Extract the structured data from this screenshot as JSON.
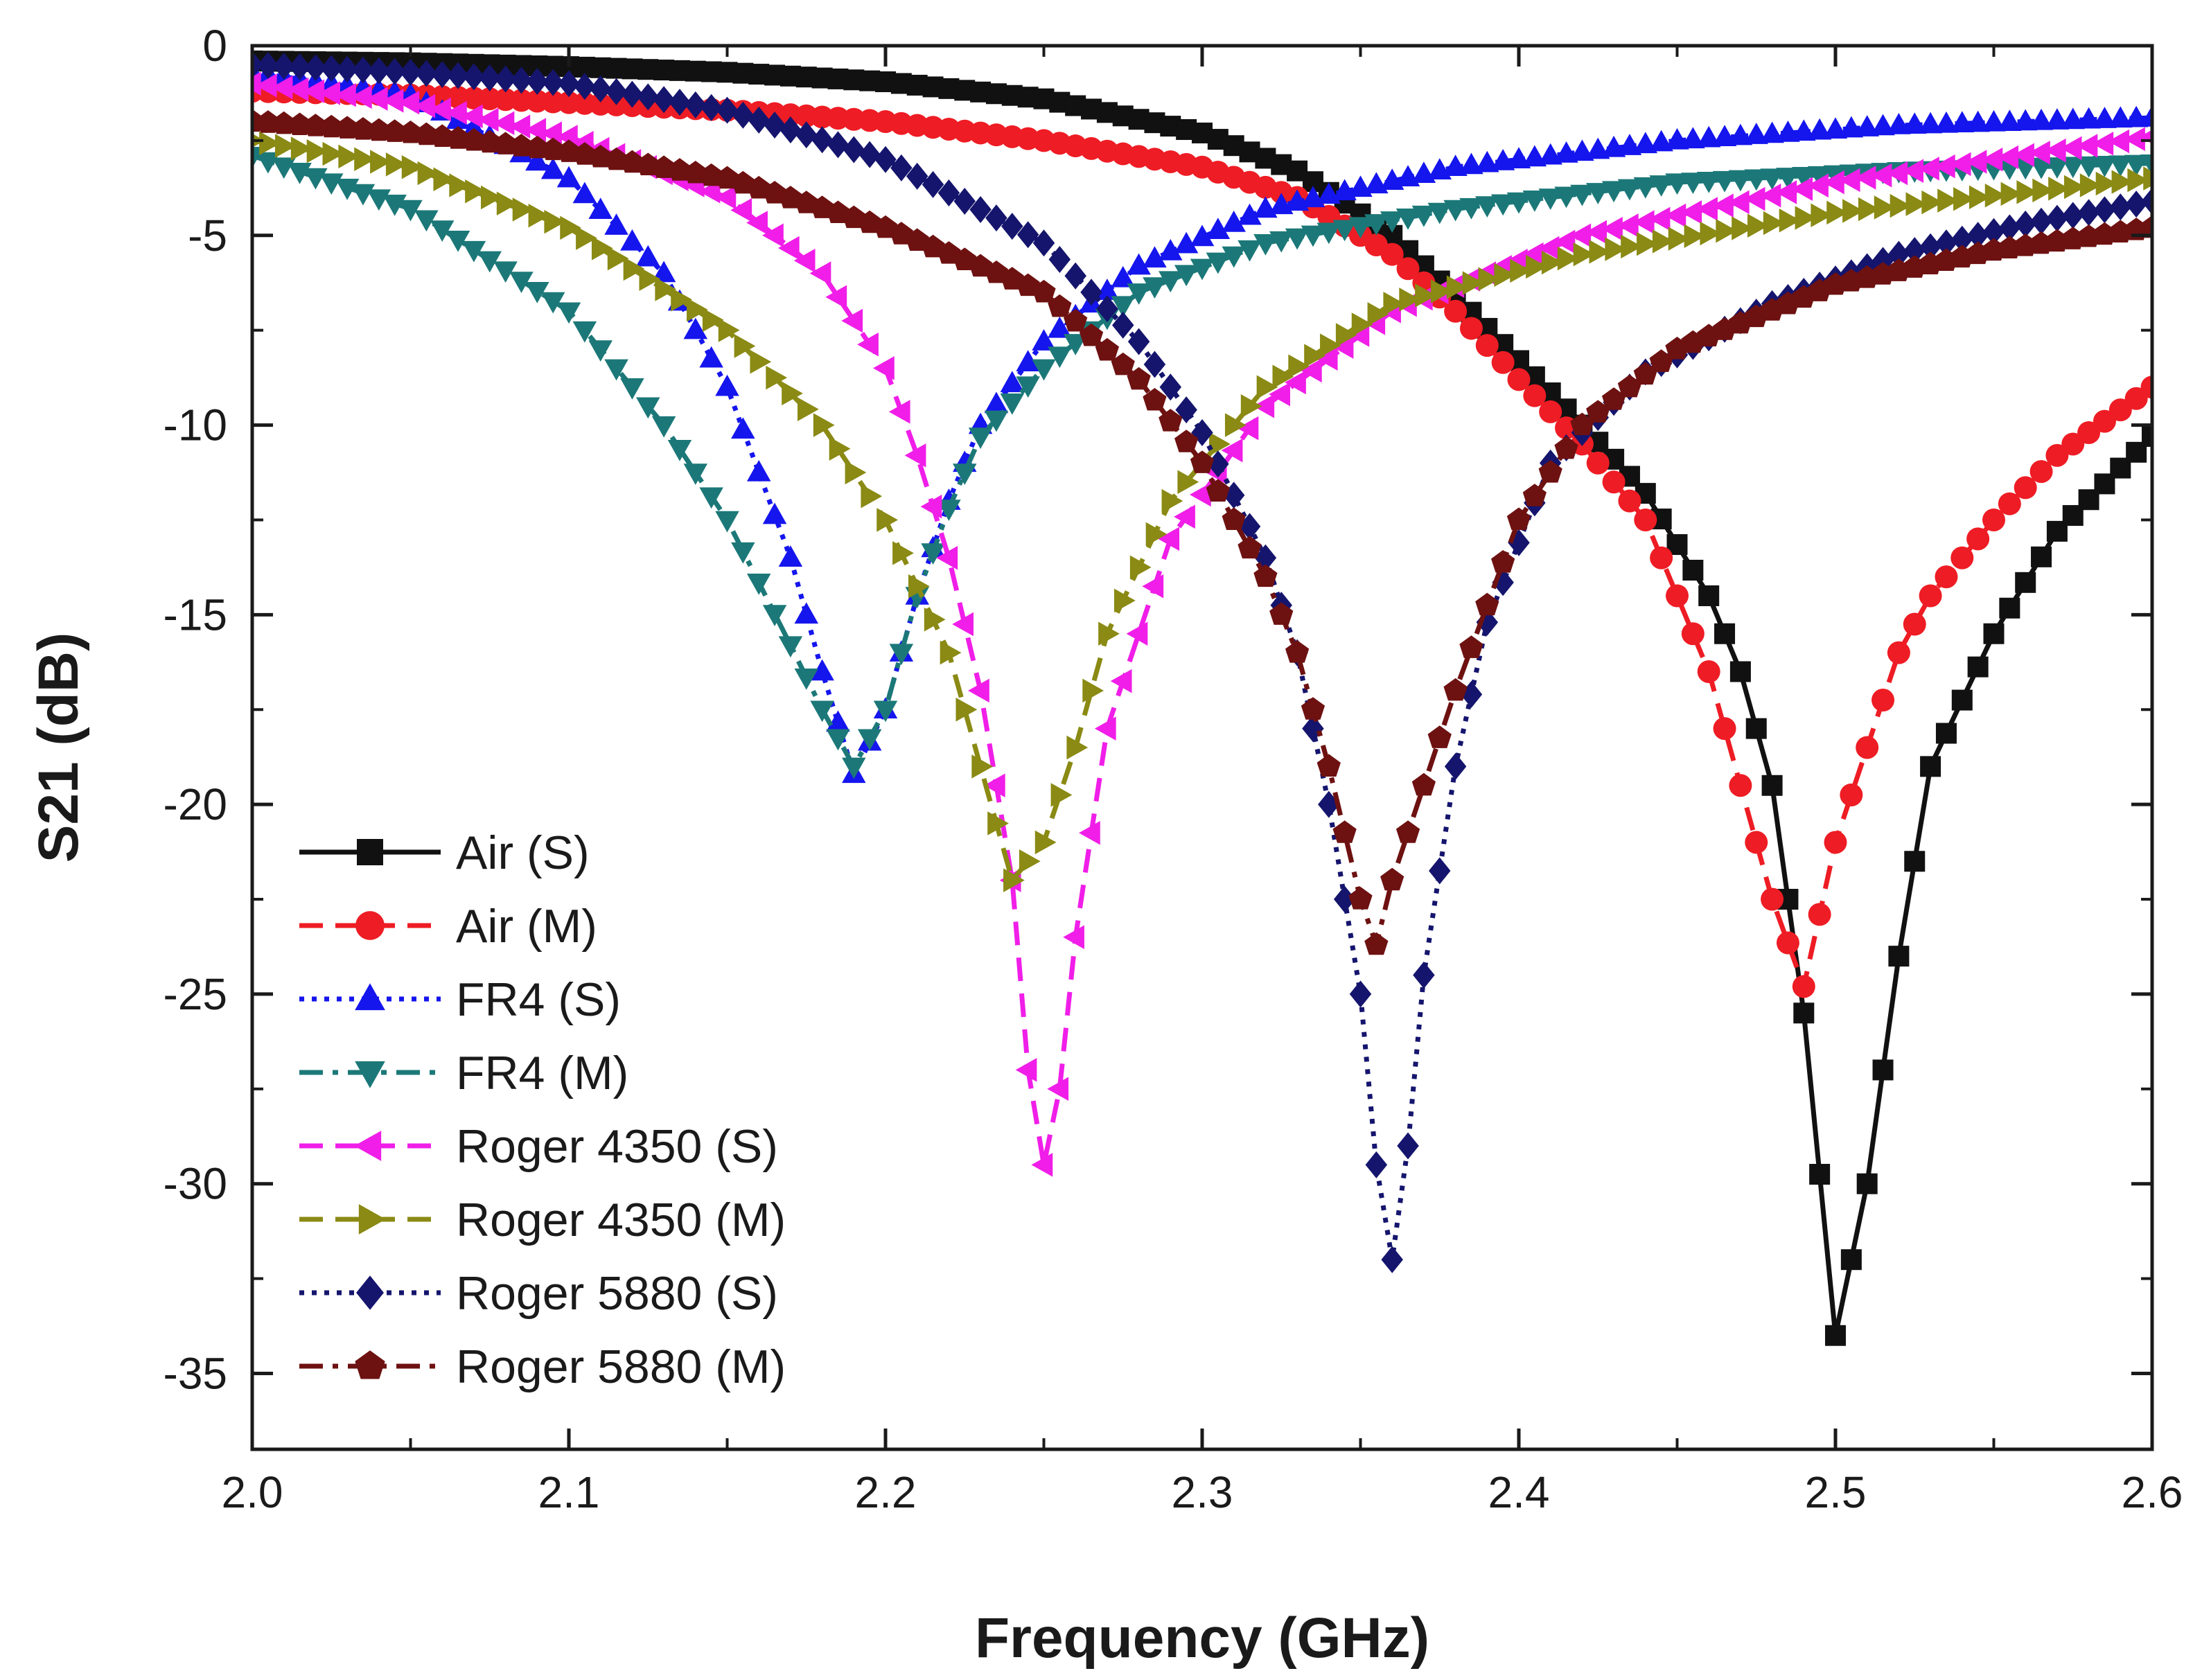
{
  "chart_data": {
    "type": "line",
    "title": "",
    "xlabel": "Frequency (GHz)",
    "ylabel": "S21 (dB)",
    "xlim": [
      2.0,
      2.6
    ],
    "ylim": [
      -37,
      0
    ],
    "xticks": [
      2.0,
      2.1,
      2.2,
      2.3,
      2.4,
      2.5,
      2.6
    ],
    "xtick_labels": [
      "2.0",
      "2.1",
      "2.2",
      "2.3",
      "2.4",
      "2.5",
      "2.6"
    ],
    "yticks": [
      0,
      -5,
      -10,
      -15,
      -20,
      -25,
      -30,
      -35
    ],
    "ytick_labels": [
      "0",
      "-5",
      "-10",
      "-15",
      "-20",
      "-25",
      "-30",
      "-35"
    ],
    "grid": false,
    "legend_position": "bottom-left",
    "series": [
      {
        "name": "Air (S)",
        "color": "#111111",
        "marker": "square",
        "line": "solid",
        "x": [
          2.0,
          2.05,
          2.1,
          2.15,
          2.2,
          2.25,
          2.3,
          2.33,
          2.36,
          2.38,
          2.4,
          2.42,
          2.44,
          2.46,
          2.47,
          2.48,
          2.49,
          2.5,
          2.51,
          2.52,
          2.53,
          2.55,
          2.57,
          2.6
        ],
        "y": [
          -0.4,
          -0.45,
          -0.55,
          -0.7,
          -0.95,
          -1.4,
          -2.3,
          -3.3,
          -5.0,
          -6.6,
          -8.3,
          -10.0,
          -11.8,
          -14.5,
          -16.5,
          -19.5,
          -25.5,
          -34.0,
          -30.0,
          -24.0,
          -19.0,
          -15.5,
          -12.8,
          -10.3
        ]
      },
      {
        "name": "Air (M)",
        "color": "#ee1c24",
        "marker": "circle",
        "line": "dashed",
        "x": [
          2.0,
          2.05,
          2.1,
          2.15,
          2.2,
          2.25,
          2.3,
          2.33,
          2.36,
          2.38,
          2.4,
          2.42,
          2.44,
          2.46,
          2.47,
          2.48,
          2.49,
          2.5,
          2.51,
          2.52,
          2.53,
          2.55,
          2.57,
          2.6
        ],
        "y": [
          -1.2,
          -1.3,
          -1.5,
          -1.7,
          -2.0,
          -2.5,
          -3.2,
          -4.0,
          -5.5,
          -7.0,
          -8.8,
          -10.5,
          -12.5,
          -16.5,
          -19.5,
          -22.5,
          -24.8,
          -21.0,
          -18.5,
          -16.0,
          -14.5,
          -12.5,
          -10.8,
          -9.0
        ]
      },
      {
        "name": "FR4 (S)",
        "color": "#1515ee",
        "marker": "triangle-up",
        "line": "dotted",
        "x": [
          2.0,
          2.05,
          2.1,
          2.13,
          2.15,
          2.17,
          2.18,
          2.19,
          2.2,
          2.21,
          2.22,
          2.23,
          2.25,
          2.28,
          2.32,
          2.38,
          2.45,
          2.52,
          2.6
        ],
        "y": [
          -0.7,
          -1.3,
          -3.5,
          -6.0,
          -9.0,
          -13.5,
          -16.5,
          -19.2,
          -17.5,
          -14.5,
          -12.0,
          -10.0,
          -7.8,
          -5.8,
          -4.3,
          -3.2,
          -2.5,
          -2.1,
          -1.9
        ]
      },
      {
        "name": "FR4 (M)",
        "color": "#1c7878",
        "marker": "triangle-down",
        "line": "dashdot",
        "x": [
          2.0,
          2.05,
          2.1,
          2.13,
          2.15,
          2.17,
          2.18,
          2.19,
          2.2,
          2.21,
          2.22,
          2.23,
          2.25,
          2.28,
          2.32,
          2.38,
          2.45,
          2.52,
          2.6
        ],
        "y": [
          -2.9,
          -4.3,
          -7.0,
          -10.0,
          -12.5,
          -15.8,
          -17.5,
          -19.0,
          -17.5,
          -14.5,
          -12.2,
          -10.3,
          -8.5,
          -6.5,
          -5.2,
          -4.3,
          -3.6,
          -3.3,
          -3.1
        ]
      },
      {
        "name": "Roger 4350 (S)",
        "color": "#f01ee8",
        "marker": "triangle-left",
        "line": "dashed",
        "x": [
          2.0,
          2.05,
          2.1,
          2.15,
          2.18,
          2.2,
          2.21,
          2.22,
          2.23,
          2.24,
          2.245,
          2.25,
          2.255,
          2.26,
          2.27,
          2.29,
          2.32,
          2.36,
          2.42,
          2.5,
          2.6
        ],
        "y": [
          -1.0,
          -1.5,
          -2.4,
          -4.0,
          -6.0,
          -8.5,
          -10.8,
          -13.5,
          -17.0,
          -22.0,
          -27.0,
          -29.5,
          -27.5,
          -23.5,
          -18.0,
          -13.0,
          -9.5,
          -7.0,
          -5.0,
          -3.6,
          -2.4
        ]
      },
      {
        "name": "Roger 4350 (M)",
        "color": "#8a8a14",
        "marker": "triangle-right",
        "line": "dashed",
        "x": [
          2.0,
          2.05,
          2.1,
          2.15,
          2.18,
          2.2,
          2.22,
          2.23,
          2.24,
          2.25,
          2.26,
          2.27,
          2.29,
          2.32,
          2.36,
          2.42,
          2.5,
          2.6
        ],
        "y": [
          -2.5,
          -3.2,
          -4.8,
          -7.5,
          -10.0,
          -12.5,
          -16.0,
          -19.0,
          -22.0,
          -21.0,
          -18.5,
          -15.5,
          -12.0,
          -9.0,
          -6.8,
          -5.5,
          -4.4,
          -3.5
        ]
      },
      {
        "name": "Roger 5880 (S)",
        "color": "#15156e",
        "marker": "diamond",
        "line": "dotted",
        "x": [
          2.0,
          2.05,
          2.1,
          2.15,
          2.2,
          2.25,
          2.28,
          2.3,
          2.32,
          2.33,
          2.34,
          2.35,
          2.355,
          2.36,
          2.365,
          2.37,
          2.38,
          2.39,
          2.41,
          2.44,
          2.48,
          2.52,
          2.56,
          2.6
        ],
        "y": [
          -0.5,
          -0.7,
          -1.0,
          -1.7,
          -3.0,
          -5.2,
          -7.8,
          -10.2,
          -13.5,
          -16.0,
          -20.0,
          -25.0,
          -29.5,
          -32.0,
          -29.0,
          -24.5,
          -19.0,
          -15.2,
          -11.0,
          -8.6,
          -6.8,
          -5.5,
          -4.7,
          -4.1
        ]
      },
      {
        "name": "Roger 5880 (M)",
        "color": "#6e1111",
        "marker": "pentagon",
        "line": "dashdot",
        "x": [
          2.0,
          2.05,
          2.1,
          2.15,
          2.2,
          2.25,
          2.28,
          2.3,
          2.32,
          2.33,
          2.34,
          2.35,
          2.355,
          2.36,
          2.37,
          2.38,
          2.4,
          2.42,
          2.45,
          2.5,
          2.55,
          2.6
        ],
        "y": [
          -2.0,
          -2.3,
          -2.8,
          -3.5,
          -4.8,
          -6.5,
          -8.8,
          -11.0,
          -14.0,
          -16.0,
          -19.0,
          -22.5,
          -23.7,
          -22.0,
          -19.5,
          -17.0,
          -12.5,
          -10.0,
          -8.0,
          -6.3,
          -5.4,
          -4.8
        ]
      }
    ]
  }
}
